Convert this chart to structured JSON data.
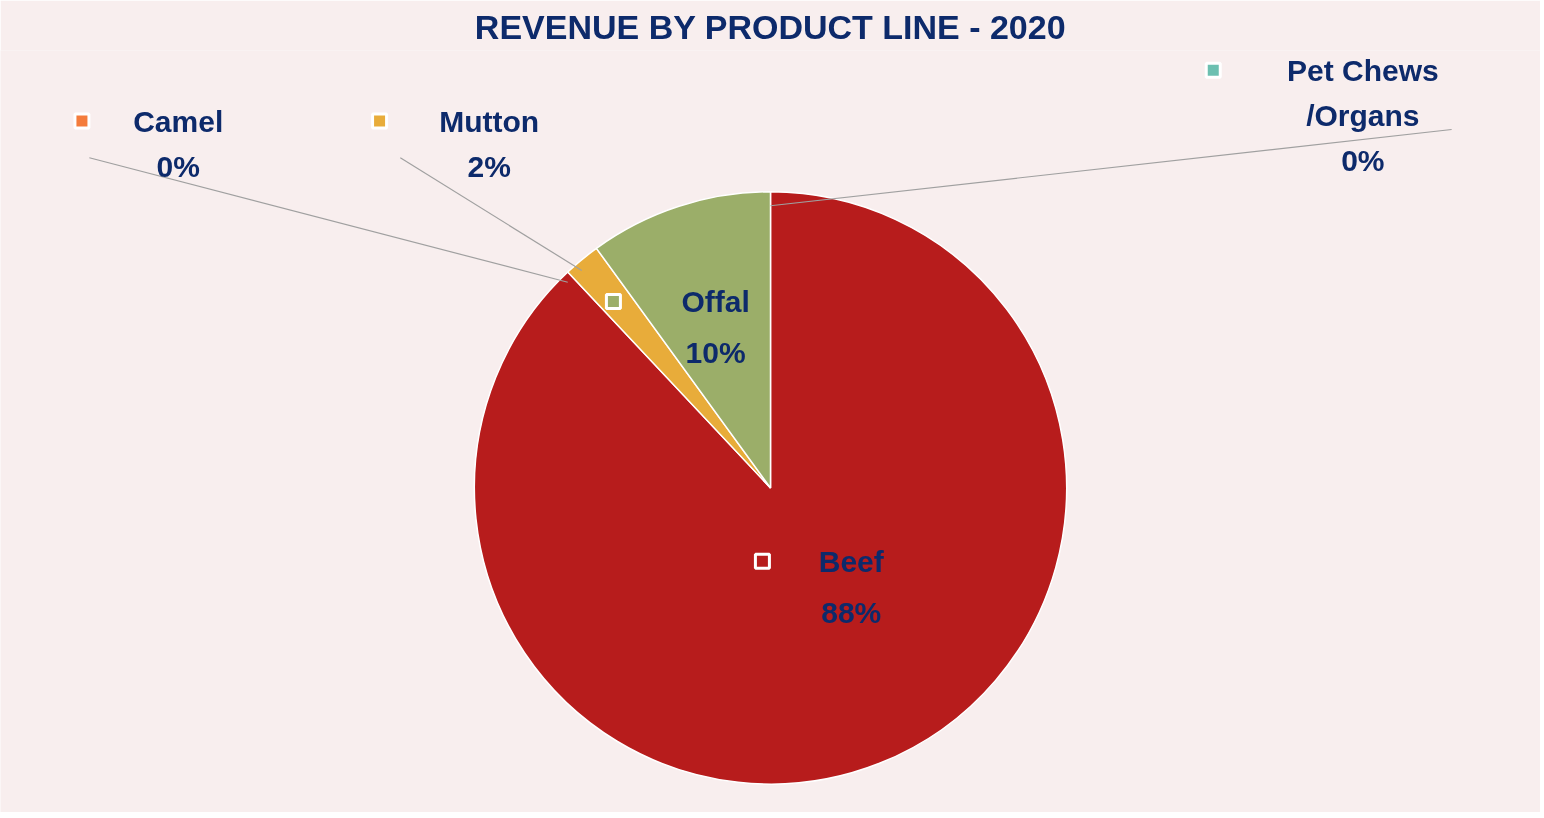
{
  "chart_data": {
    "type": "pie",
    "title": "REVENUE BY PRODUCT LINE - 2020",
    "categories": [
      "Beef",
      "Camel",
      "Mutton",
      "Offal",
      "Pet Chews /Organs"
    ],
    "values": [
      88,
      0,
      2,
      10,
      0
    ],
    "colors": [
      "#b71c1c",
      "#f47c3c",
      "#e8ac3a",
      "#9bae69",
      "#6cbfb0"
    ],
    "value_labels": [
      "88%",
      "0%",
      "2%",
      "10%",
      "0%"
    ],
    "legend": "top"
  }
}
